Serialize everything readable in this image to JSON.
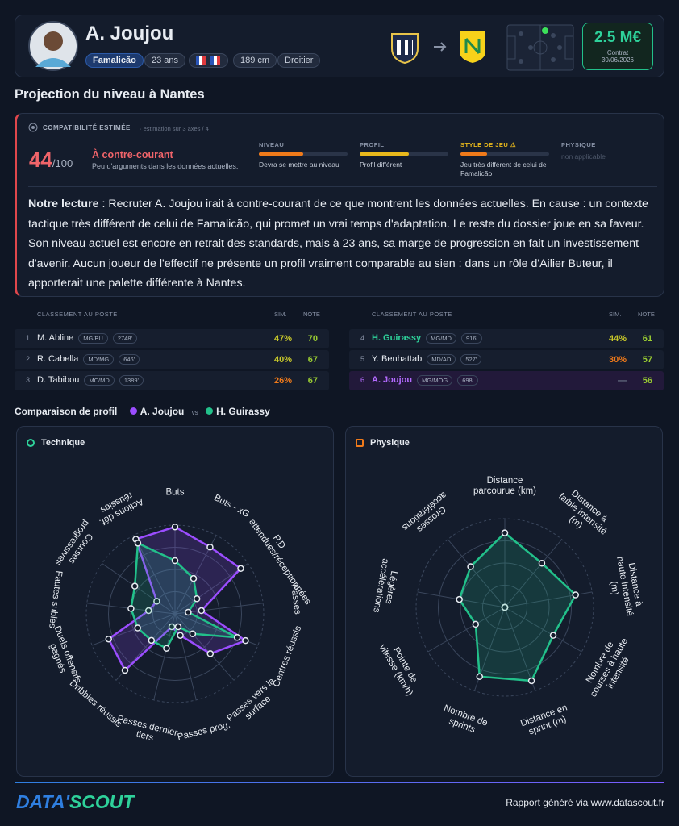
{
  "header": {
    "player_name": "A. Joujou",
    "club": "Famalicão",
    "age": "23 ans",
    "height": "189 cm",
    "foot": "Droitier",
    "value": "2.5 M€",
    "contract_label": "Contrat",
    "contract_date": "30/06/2026"
  },
  "section_title": "Projection du niveau à Nantes",
  "compat": {
    "label": "COMPATIBILITÉ ESTIMÉE",
    "note": "· estimation sur 3 axes / 4",
    "score": "44",
    "score_max": "/100",
    "verdict": "À contre-courant",
    "verdict_sub": "Peu d'arguments dans les données actuelles.",
    "axes": [
      {
        "name": "NIVEAU",
        "value": 50,
        "color": "#f07a1a",
        "desc": "Devra se mettre au niveau"
      },
      {
        "name": "PROFIL",
        "value": 55,
        "color": "#e8b81c",
        "desc": "Profil différent"
      },
      {
        "name": "STYLE DE JEU ⚠",
        "value": 30,
        "color": "#f07a1a",
        "desc": "Jeu très différent de celui de Famalicão"
      },
      {
        "name": "PHYSIQUE",
        "desc": "non applicable"
      }
    ]
  },
  "reading": {
    "label": "Notre lecture",
    "text": " : Recruter A. Joujou irait à contre-courant de ce que montrent les données actuelles. En cause : un contexte tactique très différent de celui de Famalicão, qui promet un vrai temps d'adaptation. Le reste du dossier joue en sa faveur. Son niveau actuel est encore en retrait des standards, mais à 23 ans, sa marge de progression en fait un investissement d'avenir. Aucun joueur de l'effectif ne présente un profil vraiment comparable au sien : dans un rôle d'Ailier Buteur, il apporterait une palette différente à Nantes."
  },
  "ranking": {
    "columns": [
      "CLASSEMENT AU POSTE",
      "SIM.",
      "NOTE"
    ],
    "tables": [
      [
        {
          "rank": 1,
          "name": "M. Abline",
          "pos": "MG/BU",
          "minutes": "2748'",
          "sim": "47%",
          "note": 70
        },
        {
          "rank": 2,
          "name": "R. Cabella",
          "pos": "MD/MG",
          "minutes": "646'",
          "sim": "40%",
          "note": 67
        },
        {
          "rank": 3,
          "name": "D. Tabibou",
          "pos": "MC/MD",
          "minutes": "1389'",
          "sim": "26%",
          "note": 67
        }
      ],
      [
        {
          "rank": 4,
          "name": "H. Guirassy",
          "pos": "MG/MD",
          "minutes": "916'",
          "sim": "44%",
          "note": 61,
          "color": "#2ed19a"
        },
        {
          "rank": 5,
          "name": "Y. Benhattab",
          "pos": "MD/AD",
          "minutes": "527'",
          "sim": "30%",
          "note": 57
        },
        {
          "rank": 6,
          "name": "A. Joujou",
          "pos": "MG/MOG",
          "minutes": "698'",
          "sim": "—",
          "note": 56,
          "color": "#b46bff"
        }
      ]
    ]
  },
  "comparison": {
    "title": "Comparaison de profil",
    "vs": "vs"
  },
  "chart_data": [
    {
      "type": "radar",
      "title": "Technique",
      "rlim": [
        0,
        100
      ],
      "rticks": [
        25,
        50,
        75,
        100
      ],
      "axes": [
        "Buts",
        "Buts - xG",
        "P.D attendues/réceptionnées",
        "Passes",
        "Centres réussis",
        "Passes vers la surface",
        "Passes prog.",
        "Passes dernier tiers",
        "Dribbles réussis",
        "Duels offensifs gagnés",
        "Fautes subies",
        "Courses progressives",
        "Actions déf. réussies"
      ],
      "series": [
        {
          "name": "A. Joujou",
          "color": "#9b4dff",
          "values": [
            98,
            85,
            90,
            30,
            85,
            60,
            25,
            15,
            85,
            80,
            30,
            25,
            95
          ]
        },
        {
          "name": "H. Guirassy",
          "color": "#22c08a",
          "values": [
            60,
            45,
            30,
            15,
            75,
            30,
            15,
            40,
            40,
            45,
            50,
            55,
            90
          ]
        }
      ]
    },
    {
      "type": "radar",
      "title": "Physique",
      "rlim": [
        0,
        100
      ],
      "rticks": [
        25,
        50,
        75,
        100
      ],
      "axes": [
        "Distance parcourue (km)",
        "Distance à faible intensité (m)",
        "Distance à haute intensité (m)",
        "Nombre de courses à haute intensité",
        "Distance en sprint (m)",
        "Nombre de sprints",
        "Pointe de vitesse (km/h)",
        "Légères accélérations",
        "Grosses accélérations"
      ],
      "series": [
        {
          "name": "A. Joujou",
          "color": "#9b4dff",
          "values": [
            0,
            0,
            0,
            0,
            0,
            0,
            0,
            0,
            0
          ]
        },
        {
          "name": "H. Guirassy",
          "color": "#22c08a",
          "values": [
            84,
            65,
            81,
            63,
            88,
            83,
            38,
            52,
            60
          ]
        }
      ]
    }
  ],
  "footer": {
    "logo_a": "DATA'",
    "logo_b": "SCOUT",
    "text": "Rapport généré via www.datascout.fr"
  }
}
